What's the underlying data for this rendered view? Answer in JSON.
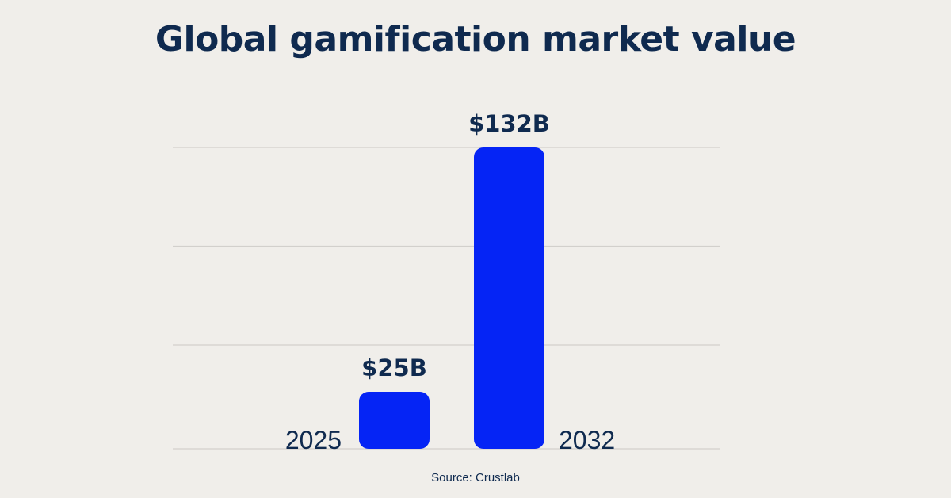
{
  "title": "Global gamification market value",
  "source": "Source: Crustlab",
  "colors": {
    "background": "#f0eeea",
    "bar": "#0524f5",
    "text": "#0f2a4f",
    "grid": "#d2d0cc"
  },
  "chart_data": {
    "type": "bar",
    "title": "Global gamification market value",
    "categories": [
      "2025",
      "2032"
    ],
    "values": [
      25,
      132
    ],
    "value_labels": [
      "$25B",
      "$132B"
    ],
    "unit": "USD billions",
    "ylim": [
      0,
      132
    ],
    "grid": true,
    "xlabel": "",
    "ylabel": ""
  }
}
